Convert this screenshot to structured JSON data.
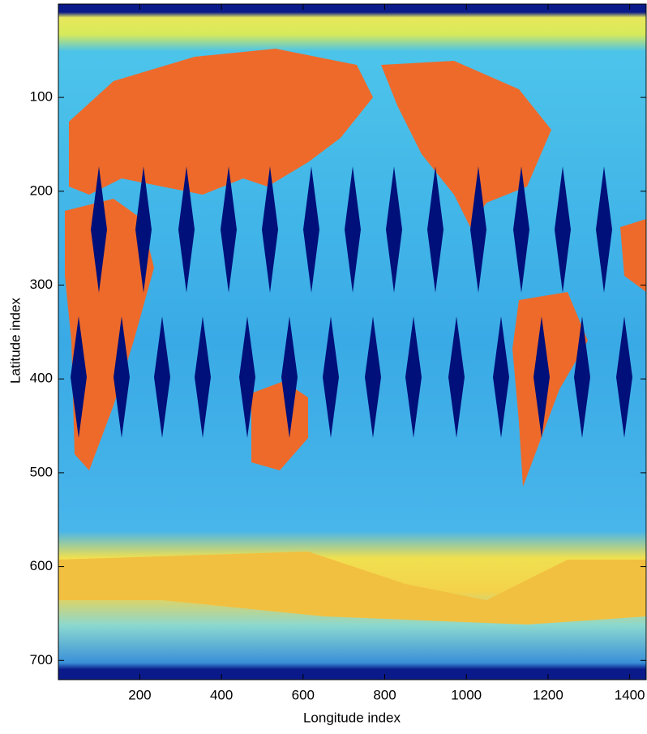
{
  "chart_data": {
    "type": "image",
    "xlabel": "Longitude index",
    "ylabel": "Latitude index",
    "xlim": [
      0.5,
      1440.5
    ],
    "ylim": [
      0.5,
      720.5
    ],
    "y_reversed": true,
    "xticks": [
      200,
      400,
      600,
      800,
      1000,
      1200,
      1400
    ],
    "yticks": [
      100,
      200,
      300,
      400,
      500,
      600,
      700
    ]
  }
}
